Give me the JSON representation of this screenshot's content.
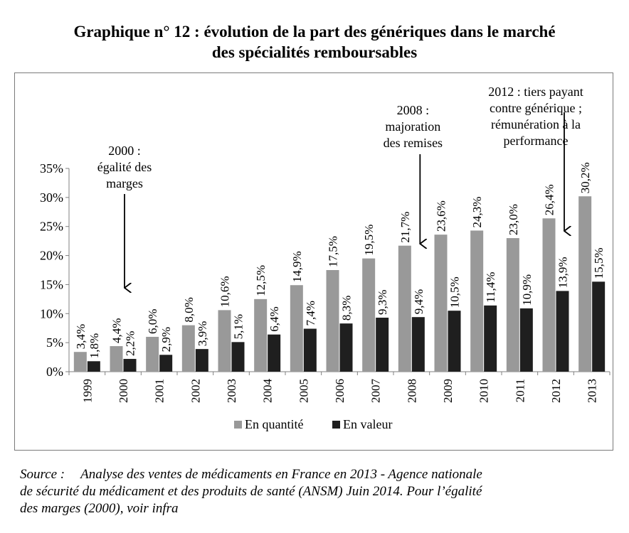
{
  "title": {
    "line1": "Graphique n° 12 : évolution de la part des génériques dans le marché",
    "line2": "des spécialités remboursables"
  },
  "chart_data": {
    "type": "bar",
    "categories": [
      "1999",
      "2000",
      "2001",
      "2002",
      "2003",
      "2004",
      "2005",
      "2006",
      "2007",
      "2008",
      "2009",
      "2010",
      "2011",
      "2012",
      "2013"
    ],
    "series": [
      {
        "name": "En quantité",
        "color": "#999999",
        "values": [
          3.4,
          4.4,
          6.0,
          8.0,
          10.6,
          12.5,
          14.9,
          17.5,
          19.5,
          21.7,
          23.6,
          24.3,
          23.0,
          26.4,
          30.2
        ],
        "labels": [
          "3,4%",
          "4,4%",
          "6,0%",
          "8,0%",
          "10,6%",
          "12,5%",
          "14,9%",
          "17,5%",
          "19,5%",
          "21,7%",
          "23,6%",
          "24,3%",
          "23,0%",
          "26,4%",
          "30,2%"
        ]
      },
      {
        "name": "En valeur",
        "color": "#1f1f1f",
        "values": [
          1.8,
          2.2,
          2.9,
          3.9,
          5.1,
          6.4,
          7.4,
          8.3,
          9.3,
          9.4,
          10.5,
          11.4,
          10.9,
          13.9,
          15.5
        ],
        "labels": [
          "1,8%",
          "2,2%",
          "2,9%",
          "3,9%",
          "5,1%",
          "6,4%",
          "7,4%",
          "8,3%",
          "9,3%",
          "9,4%",
          "10,5%",
          "11,4%",
          "10,9%",
          "13,9%",
          "15,5%"
        ]
      }
    ],
    "ylim": [
      0,
      35
    ],
    "yticks": [
      "0%",
      "5%",
      "10%",
      "15%",
      "20%",
      "25%",
      "30%",
      "35%"
    ],
    "grid": false,
    "legend": "bottom",
    "annotations": [
      {
        "category": "2000",
        "lines": [
          "2000 :",
          "égalité des",
          "marges"
        ]
      },
      {
        "category": "2008",
        "lines": [
          "2008 :",
          "majoration",
          "des remises"
        ]
      },
      {
        "category": "2012",
        "lines": [
          "2012 : tiers payant",
          "contre générique ;",
          "rémunération à la",
          "performance"
        ]
      }
    ]
  },
  "source": {
    "label": "Source :",
    "line1": "Analyse des ventes de médicaments en France en 2013 - Agence nationale",
    "line2": "de sécurité du médicament et des produits de santé (ANSM) Juin 2014. Pour l’égalité",
    "line3": "des marges (2000), voir infra"
  }
}
